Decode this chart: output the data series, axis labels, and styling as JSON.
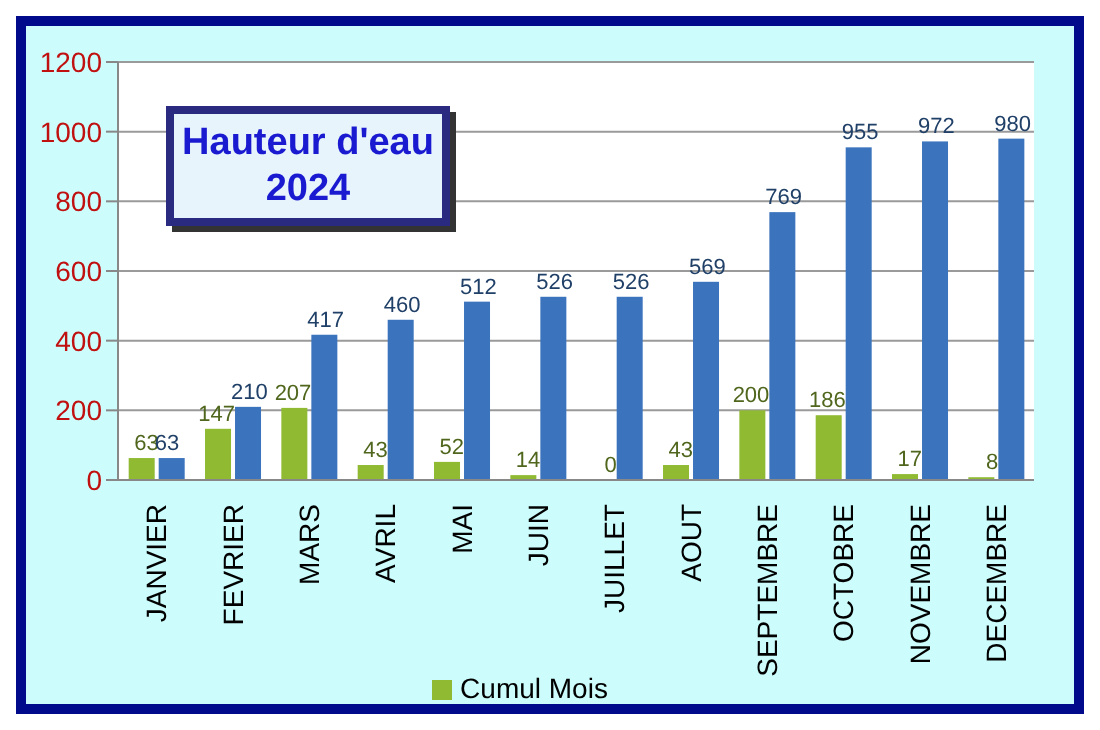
{
  "chart_data": {
    "type": "bar",
    "title": "Hauteur d'eau 2024",
    "categories": [
      "JANVIER",
      "FEVRIER",
      "MARS",
      "AVRIL",
      "MAI",
      "JUIN",
      "JUILLET",
      "AOUT",
      "SEPTEMBRE",
      "OCTOBRE",
      "NOVEMBRE",
      "DECEMBRE"
    ],
    "series": [
      {
        "name": "Cumul Mois",
        "color": "#8fba32",
        "values": [
          63,
          147,
          207,
          43,
          52,
          14,
          0,
          43,
          200,
          186,
          17,
          8
        ]
      },
      {
        "color": "#3b74bd",
        "values": [
          63,
          210,
          417,
          460,
          512,
          526,
          526,
          569,
          769,
          955,
          972,
          980
        ]
      }
    ],
    "ylim": [
      0,
      1200
    ],
    "yticks": [
      0,
      200,
      400,
      600,
      800,
      1000,
      1200
    ],
    "grid": "y",
    "legend": "bottom",
    "data_labels": true
  }
}
